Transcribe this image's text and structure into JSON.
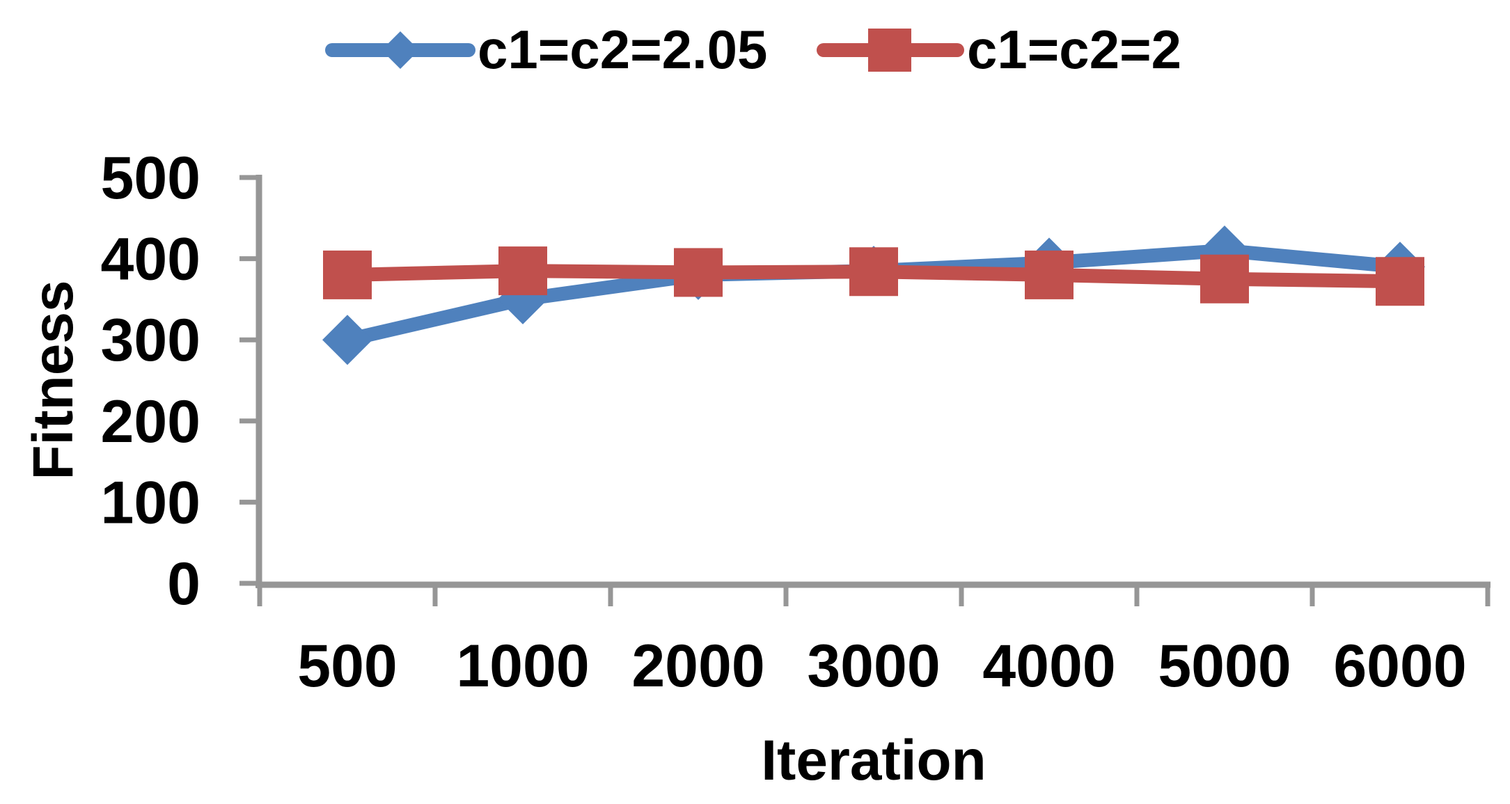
{
  "chart_data": {
    "type": "line",
    "title": "",
    "categories": [
      "500",
      "1000",
      "2000",
      "3000",
      "4000",
      "5000",
      "6000"
    ],
    "series": [
      {
        "name": "c1=c2=2.05",
        "values": [
          300,
          350,
          380,
          385,
          395,
          410,
          390
        ],
        "color": "#4F81BD",
        "marker": "diamond"
      },
      {
        "name": "c1=c2=2",
        "values": [
          380,
          385,
          383,
          384,
          380,
          375,
          372
        ],
        "color": "#C0504D",
        "marker": "square"
      }
    ],
    "xlabel": "Iteration",
    "ylabel": "Fitness",
    "ylim": [
      0,
      500
    ],
    "yticks": [
      0,
      100,
      200,
      300,
      400,
      500
    ],
    "legend_position": "top-center",
    "grid": false,
    "axis_color": "#969696",
    "text_color": "#000000",
    "background_color": "#ffffff"
  }
}
